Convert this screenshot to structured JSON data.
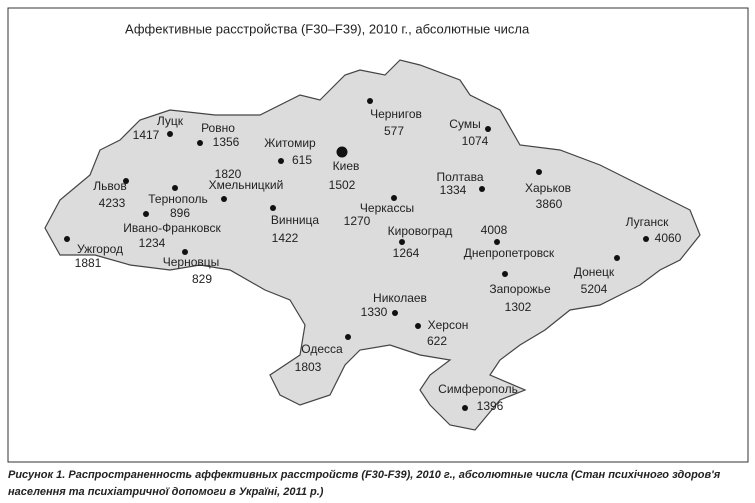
{
  "title": "Аффективные расстройства (F30–F39), 2010 г., абсолютные числа",
  "cities": [
    {
      "name": "Луцк",
      "value": 1417
    },
    {
      "name": "Ровно",
      "value": 1356
    },
    {
      "name": "Житомир",
      "value": 615
    },
    {
      "name": "Чернигов",
      "value": 577
    },
    {
      "name": "Сумы",
      "value": 1074
    },
    {
      "name": "Киев",
      "value": 1502
    },
    {
      "name": "Хмельницкий",
      "value": 1820
    },
    {
      "name": "Львов",
      "value": 4233
    },
    {
      "name": "Тернополь",
      "value": 896
    },
    {
      "name": "Ивано-Франковск",
      "value": 1234
    },
    {
      "name": "Винница",
      "value": 1422
    },
    {
      "name": "Черкассы",
      "value": 1270
    },
    {
      "name": "Кировоград",
      "value": 1264
    },
    {
      "name": "Полтава",
      "value": 1334
    },
    {
      "name": "Харьков",
      "value": 3860
    },
    {
      "name": "Ужгород",
      "value": 1881
    },
    {
      "name": "Черновцы",
      "value": 829
    },
    {
      "name": "Днепропетровск",
      "value": 4008
    },
    {
      "name": "Луганск",
      "value": 4060
    },
    {
      "name": "Запорожье",
      "value": 1302
    },
    {
      "name": "Донецк",
      "value": 5204
    },
    {
      "name": "Николаев",
      "value": 1330
    },
    {
      "name": "Херсон",
      "value": 622
    },
    {
      "name": "Одесса",
      "value": 1803
    },
    {
      "name": "Симферополь",
      "value": 1396
    }
  ],
  "caption": [
    "Рисунок 1. Распространенность аффективных расстройств (F30-F39), 2010 г., абсолютные числа (Стан психічного здоров'я",
    "населення та психіатричної допомоги в Україні, 2011 р.)"
  ]
}
